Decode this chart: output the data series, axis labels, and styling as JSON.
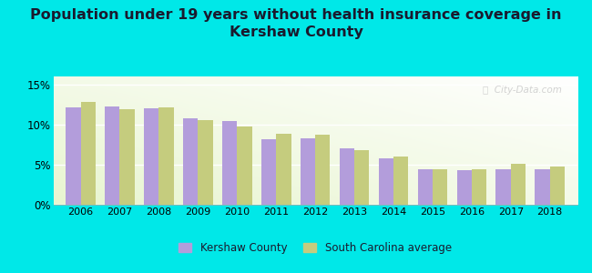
{
  "title_line1": "Population under 19 years without health insurance coverage in",
  "title_line2": "Kershaw County",
  "years": [
    2006,
    2007,
    2008,
    2009,
    2010,
    2011,
    2012,
    2013,
    2014,
    2015,
    2016,
    2017,
    2018
  ],
  "kershaw": [
    12.1,
    12.2,
    12.0,
    10.8,
    10.4,
    8.2,
    8.3,
    7.0,
    5.8,
    4.4,
    4.3,
    4.4,
    4.4
  ],
  "sc_avg": [
    12.8,
    11.9,
    12.1,
    10.5,
    9.8,
    8.9,
    8.7,
    6.8,
    6.0,
    4.4,
    4.4,
    5.1,
    4.8
  ],
  "kershaw_color": "#b39ddb",
  "sc_color": "#c5cc7e",
  "background_color": "#00e8e8",
  "title_color": "#1a1a2e",
  "title_fontsize": 11.5,
  "bar_width": 0.38,
  "ylim_max": 16,
  "yticks": [
    0,
    5,
    10,
    15
  ],
  "ytick_labels": [
    "0%",
    "5%",
    "10%",
    "15%"
  ],
  "legend_kershaw": "Kershaw County",
  "legend_sc": "South Carolina average",
  "watermark": "City-Data.com",
  "watermark_color": "#c8c8c8"
}
